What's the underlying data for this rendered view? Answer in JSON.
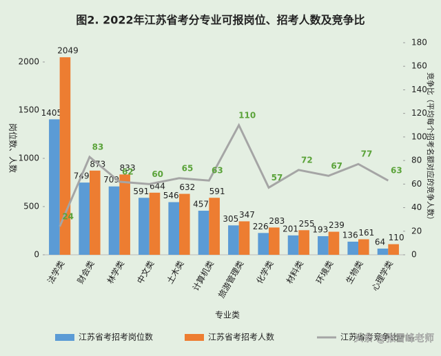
{
  "chart_data": {
    "type": "bar-line",
    "title": "图2. 2022年江苏省考分专业可报岗位、招考人数及竞争比",
    "x_label": "专业类",
    "y_label": "岗位数、人数",
    "y2_label": "竞争比（平均每个招考名额对应的竞争人数）",
    "categories": [
      "法学类",
      "财会类",
      "林学类",
      "中文类",
      "土木类",
      "计算机类",
      "旅游管理类",
      "化学类",
      "材料类",
      "环境类",
      "生物类",
      "心理学类"
    ],
    "series": [
      {
        "name": "江苏省考招考岗位数",
        "color": "#5b9bd5",
        "values": [
          1405,
          749,
          709,
          591,
          546,
          457,
          305,
          226,
          201,
          193,
          136,
          64
        ]
      },
      {
        "name": "江苏省考招考人数",
        "color": "#ed7d31",
        "values": [
          2049,
          873,
          833,
          644,
          632,
          591,
          347,
          283,
          255,
          239,
          161,
          110
        ]
      },
      {
        "name": "江苏省考竞争比",
        "color": "#a5a5a5",
        "label_color": "#5ba33a",
        "axis": "y2",
        "values": [
          24,
          83,
          62,
          60,
          65,
          63,
          110,
          57,
          72,
          67,
          77,
          63
        ]
      }
    ],
    "ylim": [
      0,
      2200
    ],
    "yticks": [
      0,
      500,
      1000,
      1500,
      2000
    ],
    "y2lim": [
      0,
      180
    ],
    "y2ticks": [
      0,
      20,
      40,
      60,
      80,
      100,
      120,
      140,
      160,
      180
    ],
    "watermark": "头条 @张雪峰老师"
  }
}
